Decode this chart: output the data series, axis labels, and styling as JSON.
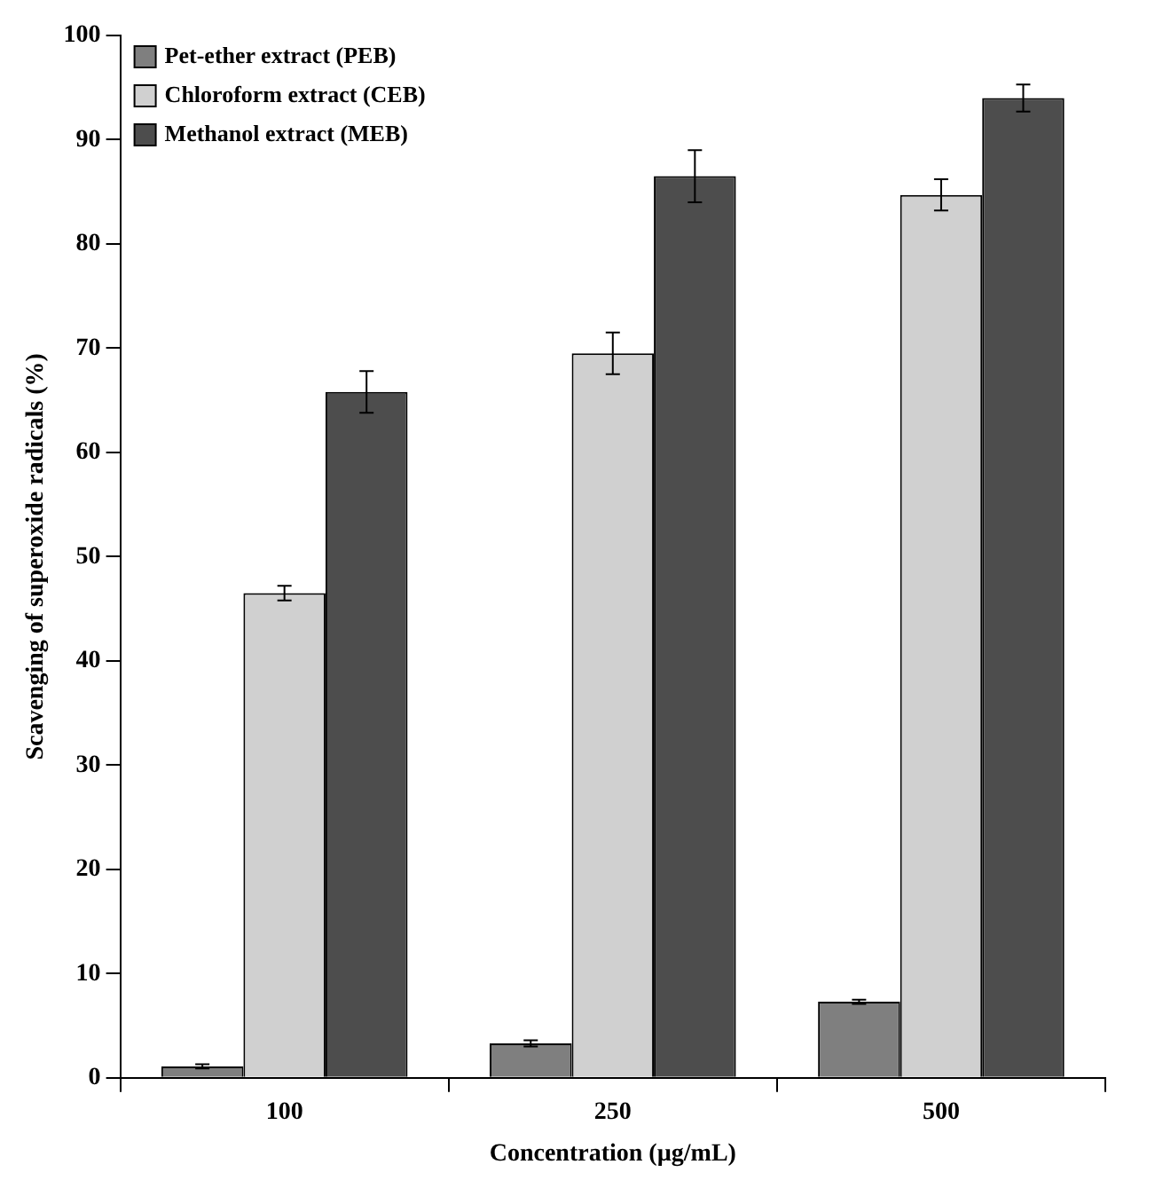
{
  "chart_data": {
    "type": "bar",
    "xlabel": "Concentration (µg/mL)",
    "ylabel": "Scavenging of superoxide radicals (%)",
    "categories": [
      "100",
      "250",
      "500"
    ],
    "series": [
      {
        "name": "Pet-ether extract (PEB)",
        "color": "#7f7f7f",
        "values": [
          1.1,
          3.3,
          7.3
        ],
        "errors": [
          0.2,
          0.3,
          0.2
        ]
      },
      {
        "name": "Chloroform extract (CEB)",
        "color": "#d0d0d0",
        "values": [
          46.5,
          69.5,
          84.7
        ],
        "errors": [
          0.7,
          2,
          1.5
        ]
      },
      {
        "name": "Methanol extract (MEB)",
        "color": "#4d4d4d",
        "values": [
          65.8,
          86.5,
          94
        ],
        "errors": [
          2,
          2.5,
          1.3
        ]
      }
    ],
    "ylim": [
      0,
      100
    ],
    "yticks": [
      0,
      10,
      20,
      30,
      40,
      50,
      60,
      70,
      80,
      90,
      100
    ],
    "grid": false,
    "legend": "top left"
  }
}
